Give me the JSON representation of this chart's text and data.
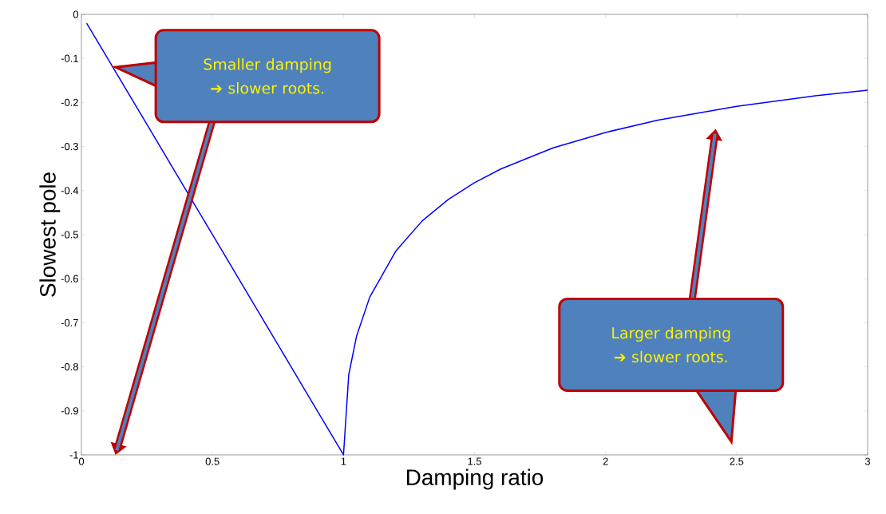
{
  "chart_data": {
    "type": "line",
    "xlabel": "Damping ratio",
    "ylabel": "Slowest pole",
    "series": [
      {
        "color": "#0000ff",
        "x": [
          0.02,
          0.25,
          0.5,
          0.75,
          1.0,
          1.02,
          1.05,
          1.1,
          1.2,
          1.3,
          1.4,
          1.5,
          1.6,
          1.8,
          2.0,
          2.2,
          2.5,
          2.8,
          3.0
        ],
        "values": [
          -0.02,
          -0.25,
          -0.5,
          -0.75,
          -1.0,
          -0.818,
          -0.73,
          -0.642,
          -0.537,
          -0.469,
          -0.42,
          -0.382,
          -0.351,
          -0.303,
          -0.268,
          -0.24,
          -0.209,
          -0.185,
          -0.172
        ]
      }
    ],
    "xlim": [
      0,
      3
    ],
    "ylim": [
      -1,
      0
    ],
    "xticks": [
      0,
      0.5,
      1,
      1.5,
      2,
      2.5,
      3
    ],
    "yticks": [
      -1,
      -0.9,
      -0.8,
      -0.7,
      -0.6,
      -0.5,
      -0.4,
      -0.3,
      -0.2,
      -0.1,
      0
    ],
    "annotations": [
      "Smaller damping ➔ slower roots.",
      "Larger damping ➔ slower roots."
    ]
  }
}
